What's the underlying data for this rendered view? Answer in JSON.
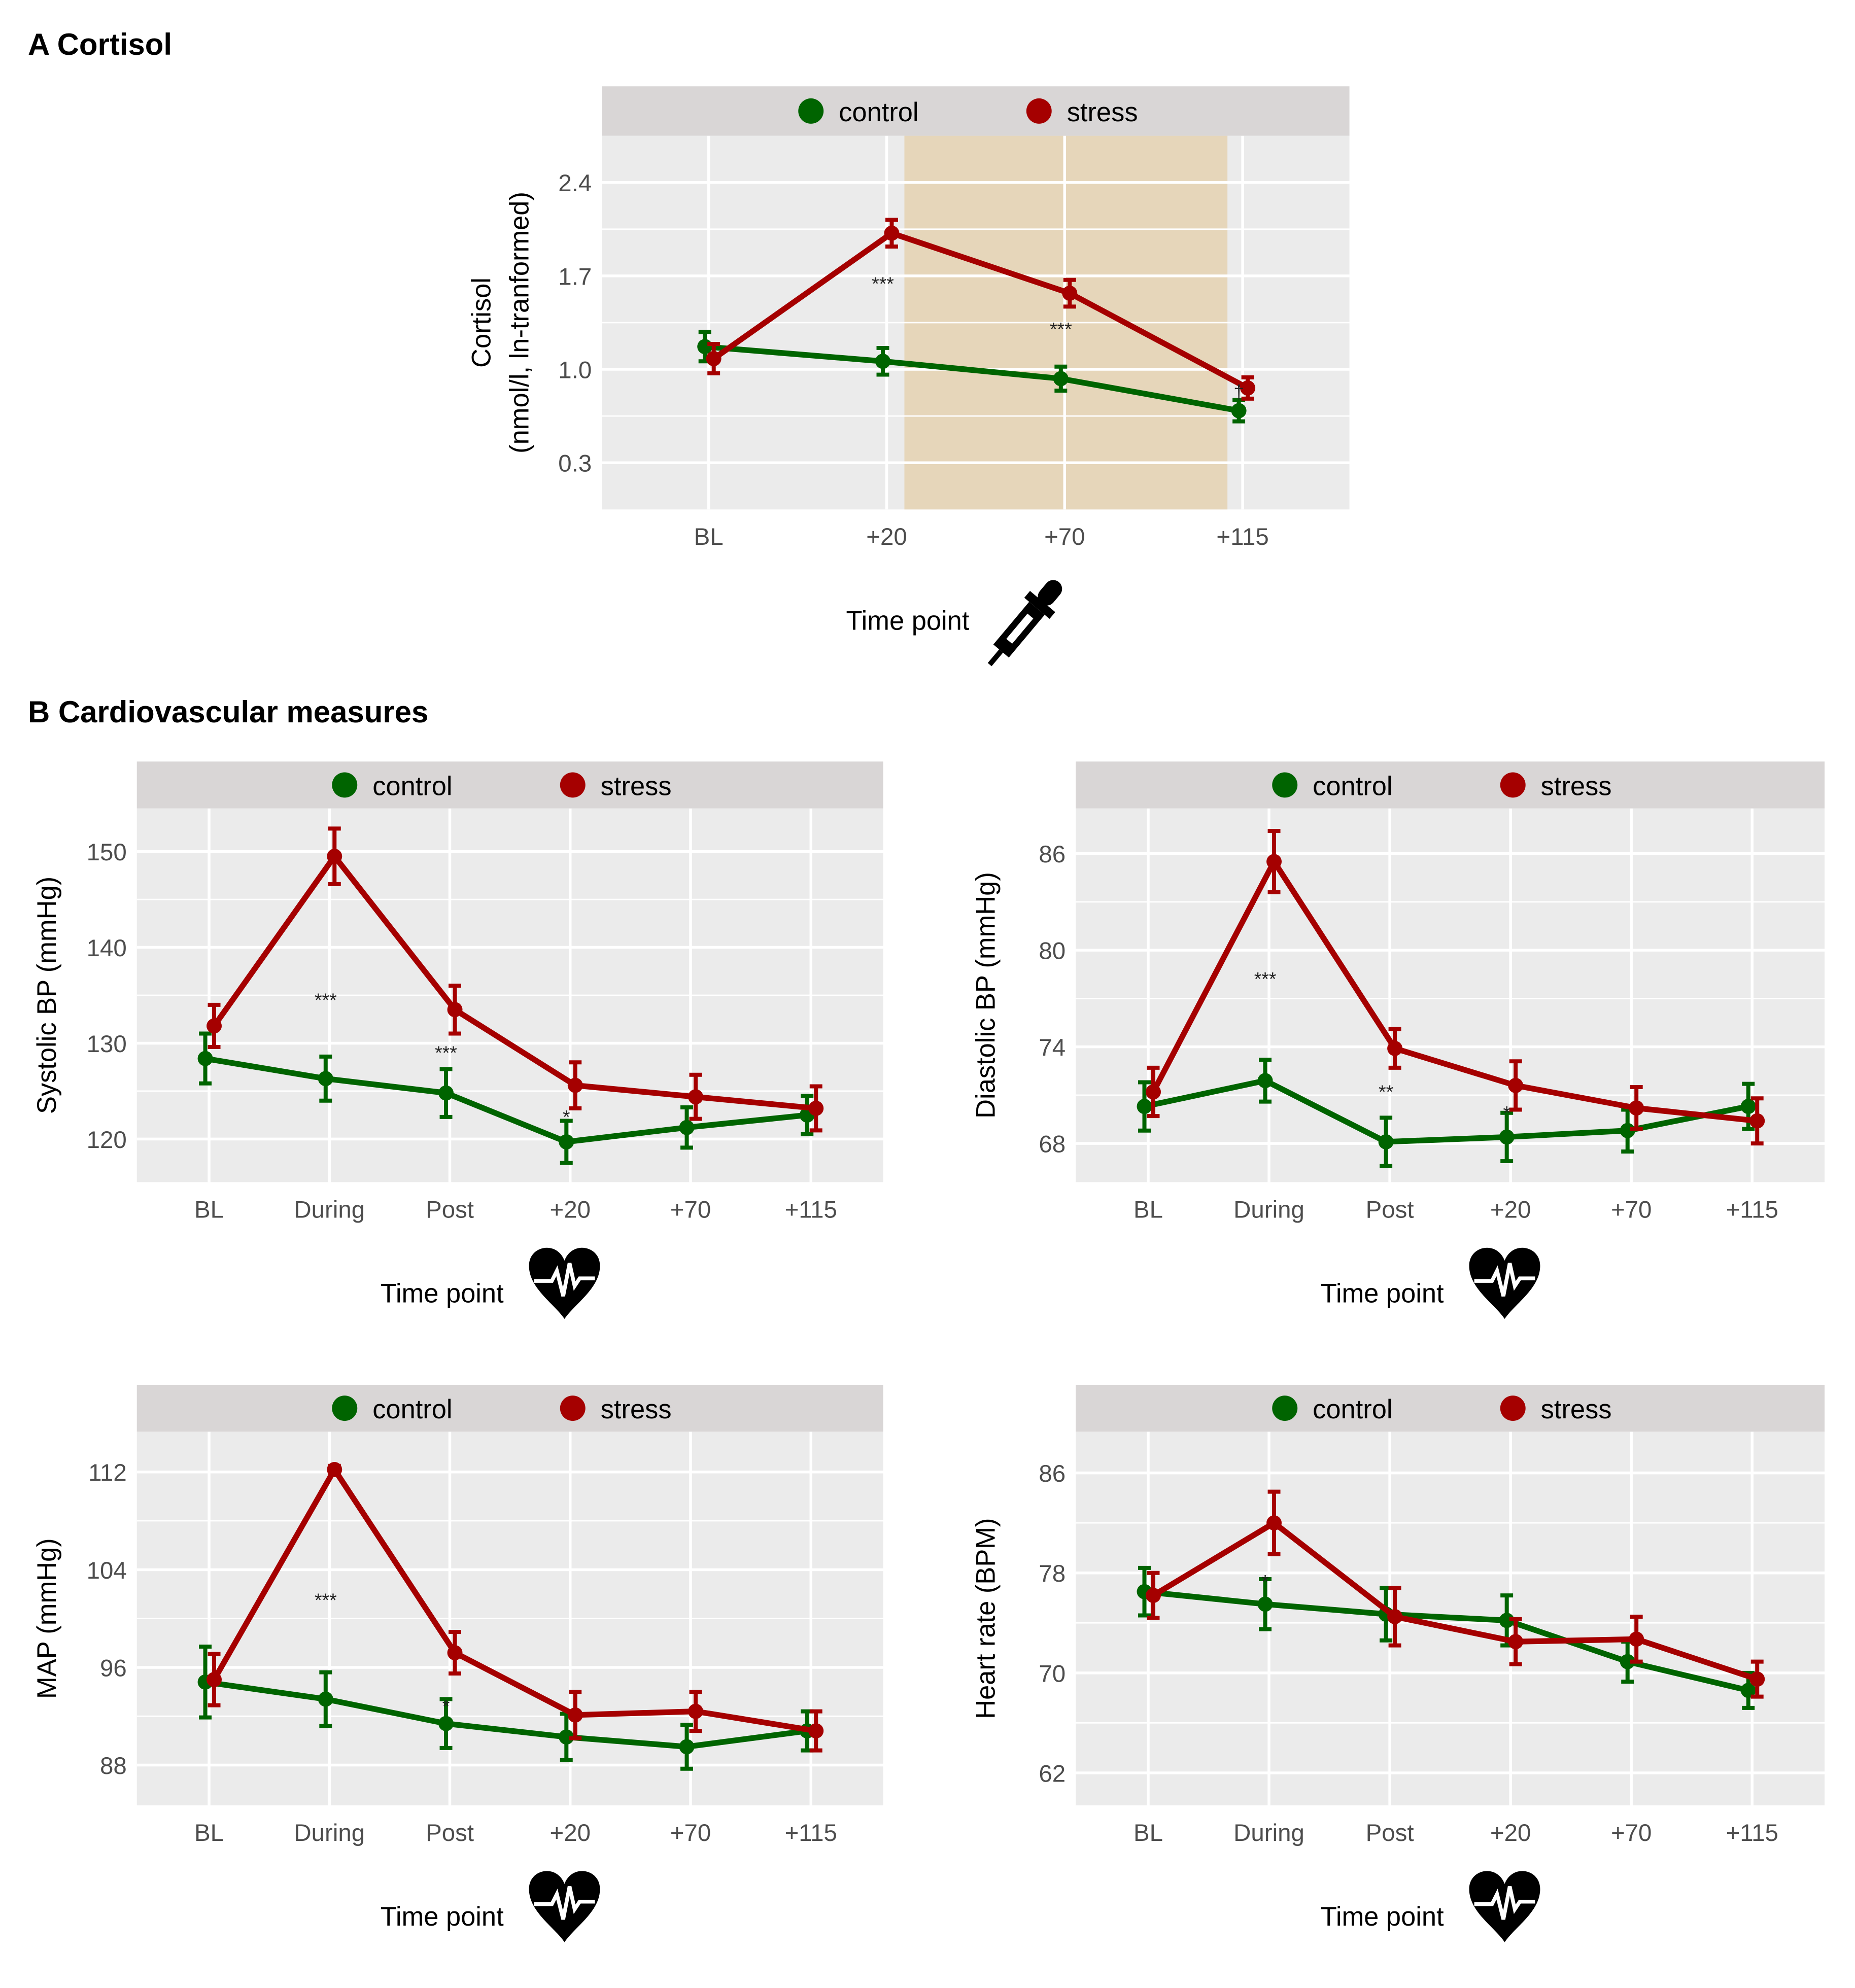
{
  "sections": {
    "a": "A Cortisol",
    "b": "B Cardiovascular measures"
  },
  "colors": {
    "control": "#006400",
    "stress": "#A50000",
    "shade": "#E6D6BA",
    "panel": "#EBEBEB",
    "strip": "#D9D6D6"
  },
  "chart_data": [
    {
      "id": "cortisol",
      "type": "line",
      "icon": "dropper-icon",
      "xlabel": "Time point",
      "ylabel": [
        "Cortisol",
        "(nmol/l, ln-tranformed)"
      ],
      "categories": [
        "BL",
        "+20",
        "+70",
        "+115"
      ],
      "yticks": [
        "0.3",
        "1.0",
        "1.7",
        "2.4"
      ],
      "ylim": [
        -0.05,
        2.75
      ],
      "shaded_categories": [
        "+20",
        "+115"
      ],
      "legend": [
        "control",
        "stress"
      ],
      "legend_position": "top",
      "series": [
        {
          "name": "control",
          "values": [
            1.17,
            1.06,
            0.93,
            0.69
          ],
          "se": [
            0.11,
            0.1,
            0.09,
            0.08
          ]
        },
        {
          "name": "stress",
          "values": [
            1.08,
            2.02,
            1.57,
            0.86
          ],
          "se": [
            0.11,
            0.1,
            0.1,
            0.08
          ]
        }
      ],
      "annotations": [
        {
          "category": 1,
          "y": 1.64,
          "label": "***"
        },
        {
          "category": 2,
          "y": 1.3,
          "label": "***"
        },
        {
          "category": 3,
          "y": 0.83,
          "label": "†"
        }
      ]
    },
    {
      "id": "systolic",
      "type": "line",
      "icon": "heart-rate-icon",
      "xlabel": "Time point",
      "ylabel": [
        "Systolic BP (mmHg)"
      ],
      "categories": [
        "BL",
        "During",
        "Post",
        "+20",
        "+70",
        "+115"
      ],
      "yticks": [
        "120",
        "130",
        "140",
        "150"
      ],
      "ylim": [
        115.5,
        154.5
      ],
      "legend": [
        "control",
        "stress"
      ],
      "legend_position": "top",
      "series": [
        {
          "name": "control",
          "values": [
            128.4,
            126.3,
            124.8,
            119.7,
            121.2,
            122.5
          ],
          "se": [
            2.6,
            2.3,
            2.5,
            2.2,
            2.1,
            2.0
          ]
        },
        {
          "name": "stress",
          "values": [
            131.8,
            149.5,
            133.5,
            125.6,
            124.4,
            123.2
          ],
          "se": [
            2.2,
            2.9,
            2.5,
            2.4,
            2.3,
            2.3
          ]
        }
      ],
      "annotations": [
        {
          "category": 1,
          "y": 134.5,
          "label": "***"
        },
        {
          "category": 2,
          "y": 129.0,
          "label": "***"
        },
        {
          "category": 3,
          "y": 122.3,
          "label": "*"
        }
      ]
    },
    {
      "id": "diastolic",
      "type": "line",
      "icon": "heart-rate-icon",
      "xlabel": "Time point",
      "ylabel": [
        "Diastolic BP (mmHg)"
      ],
      "categories": [
        "BL",
        "During",
        "Post",
        "+20",
        "+70",
        "+115"
      ],
      "yticks": [
        "68",
        "74",
        "80",
        "86"
      ],
      "ylim": [
        65.6,
        88.8
      ],
      "legend": [
        "control",
        "stress"
      ],
      "legend_position": "top",
      "series": [
        {
          "name": "control",
          "values": [
            70.3,
            71.9,
            68.1,
            68.4,
            68.8,
            70.3
          ],
          "se": [
            1.5,
            1.3,
            1.5,
            1.5,
            1.3,
            1.4
          ]
        },
        {
          "name": "stress",
          "values": [
            71.2,
            85.5,
            73.9,
            71.6,
            70.2,
            69.4
          ],
          "se": [
            1.5,
            1.9,
            1.2,
            1.5,
            1.3,
            1.4
          ]
        }
      ],
      "annotations": [
        {
          "category": 1,
          "y": 78.2,
          "label": "***"
        },
        {
          "category": 2,
          "y": 71.2,
          "label": "**"
        },
        {
          "category": 3,
          "y": 69.9,
          "label": "*"
        }
      ]
    },
    {
      "id": "map",
      "type": "line",
      "icon": "heart-rate-icon",
      "xlabel": "Time point",
      "ylabel": [
        "MAP (mmHg)"
      ],
      "categories": [
        "BL",
        "During",
        "Post",
        "+20",
        "+70",
        "+115"
      ],
      "yticks": [
        "88",
        "96",
        "104",
        "112"
      ],
      "ylim": [
        84.7,
        115.3
      ],
      "legend": [
        "control",
        "stress"
      ],
      "legend_position": "top",
      "series": [
        {
          "name": "control",
          "values": [
            94.8,
            93.4,
            91.4,
            90.3,
            89.5,
            90.8
          ],
          "se": [
            2.9,
            2.2,
            2.0,
            1.9,
            1.8,
            1.6
          ]
        },
        {
          "name": "stress",
          "values": [
            95.0,
            112.2,
            97.2,
            92.1,
            92.4,
            90.8
          ],
          "se": [
            2.1,
            0.3,
            1.7,
            1.9,
            1.6,
            1.6
          ]
        }
      ],
      "annotations": [
        {
          "category": 1,
          "y": 101.5,
          "label": "***"
        },
        {
          "category": 2,
          "y": 92.8,
          "label": "*"
        }
      ]
    },
    {
      "id": "heart-rate",
      "type": "line",
      "icon": "heart-rate-icon",
      "xlabel": "Time point",
      "ylabel": [
        "Heart rate (BPM)"
      ],
      "categories": [
        "BL",
        "During",
        "Post",
        "+20",
        "+70",
        "+115"
      ],
      "yticks": [
        "62",
        "70",
        "78",
        "86"
      ],
      "ylim": [
        59.4,
        89.3
      ],
      "legend": [
        "control",
        "stress"
      ],
      "legend_position": "top",
      "series": [
        {
          "name": "control",
          "values": [
            76.5,
            75.5,
            74.7,
            74.2,
            70.9,
            68.6
          ],
          "se": [
            1.9,
            2.0,
            2.1,
            2.0,
            1.6,
            1.4
          ]
        },
        {
          "name": "stress",
          "values": [
            76.2,
            82.0,
            74.5,
            72.5,
            72.7,
            69.5
          ],
          "se": [
            1.8,
            2.5,
            2.3,
            1.8,
            1.8,
            1.4
          ]
        }
      ],
      "annotations": [
        {
          "category": 1,
          "y": 77.3,
          "label": "*"
        }
      ]
    }
  ]
}
